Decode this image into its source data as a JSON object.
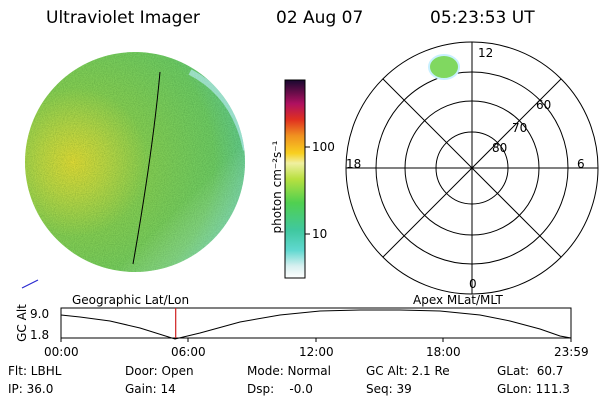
{
  "header": {
    "instrument": "Ultraviolet Imager",
    "date": "02 Aug 07",
    "time": "05:23:53 UT"
  },
  "image_panel": {
    "label": "Geographic Lat/Lon"
  },
  "polar_panel": {
    "label": "Apex MLat/MLT",
    "mlt_labels": {
      "top": "12",
      "bottom": "0",
      "left": "18",
      "right": "6"
    },
    "lat_labels": [
      "60",
      "70",
      "80"
    ]
  },
  "colorbar": {
    "unit_label": "photon cm⁻²s⁻¹",
    "ticks": [
      "100",
      "10"
    ]
  },
  "timeline": {
    "y_label": "GC Alt",
    "y_ticks": [
      "9.0",
      "1.8"
    ],
    "x_ticks": [
      "00:00",
      "06:00",
      "12:00",
      "18:00",
      "23:59"
    ],
    "current_time_fraction": 0.2249
  },
  "status": {
    "filter": "Flt: LBHL",
    "ip": "IP: 36.0",
    "door": "Door: Open",
    "gain": "Gain: 14",
    "mode": "Mode: Normal",
    "dsp": "Dsp:    -0.0",
    "gc_alt": "GC Alt: 2.1 Re",
    "seq": "Seq: 39",
    "glat": "GLat:  60.7",
    "glon": "GLon: 111.3"
  },
  "colors": {
    "disk_green": "#7ed65a",
    "disk_yellow": "#e6e83c",
    "disk_cyan": "#5ed8c8",
    "marker_red": "#d02020",
    "axis": "#000000"
  }
}
